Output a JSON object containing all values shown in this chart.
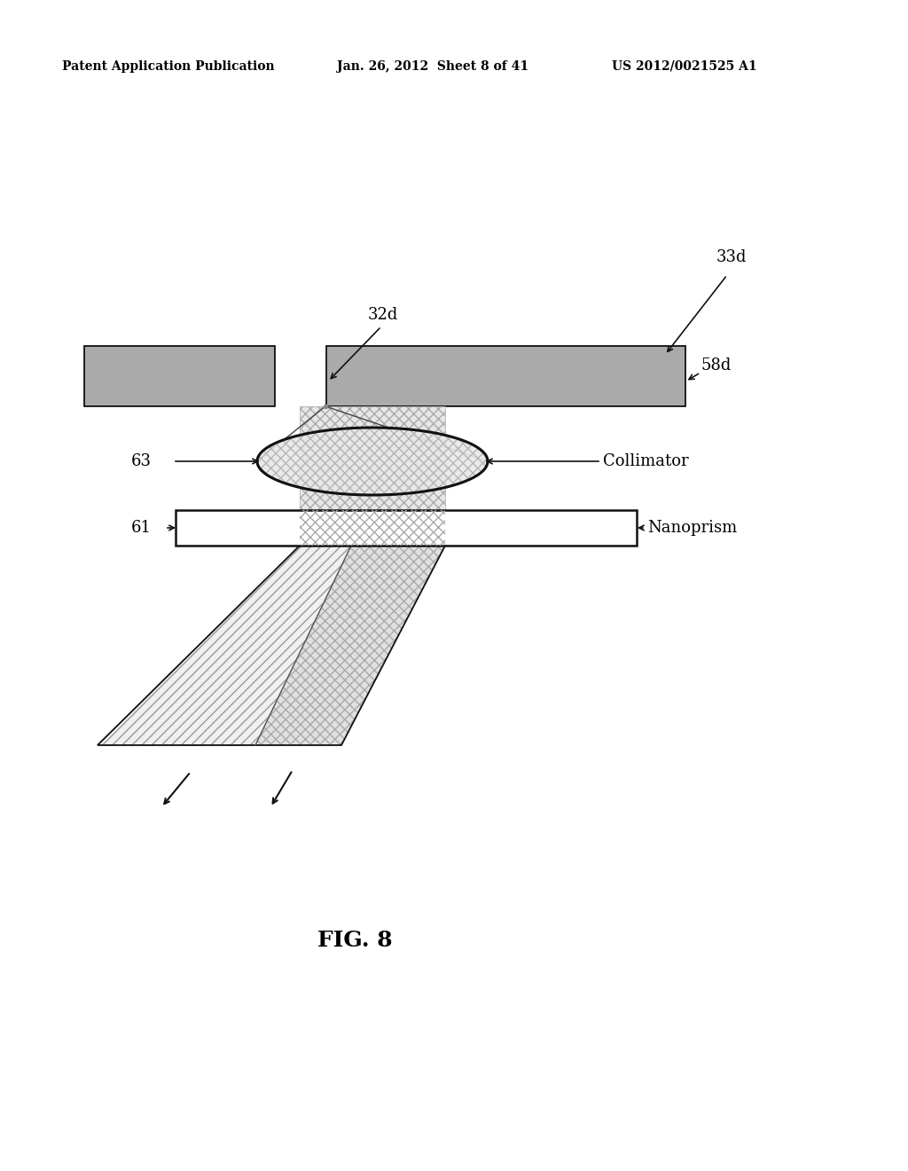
{
  "background_color": "#ffffff",
  "header_left": "Patent Application Publication",
  "header_center": "Jan. 26, 2012  Sheet 8 of 41",
  "header_right": "US 2012/0021525 A1",
  "fig_label": "FIG. 8",
  "gray_color": "#aaaaaa",
  "line_color": "#000000",
  "hatch_gray": "#999999"
}
